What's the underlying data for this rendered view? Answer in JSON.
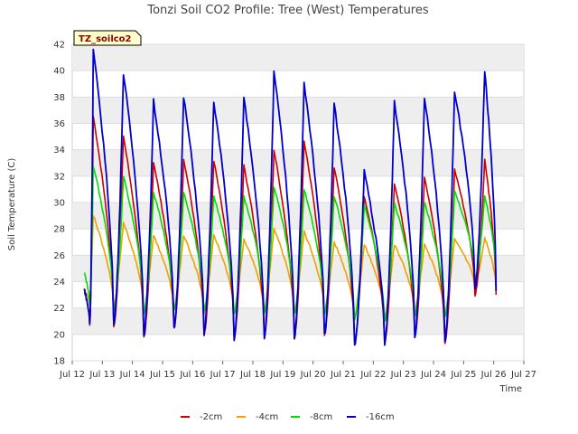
{
  "chart_data": {
    "type": "line",
    "title": "Tonzi Soil CO2 Profile: Tree (West) Temperatures",
    "xlabel": "Time",
    "ylabel": "Soil Temperature (C)",
    "tag": "TZ_soilco2",
    "ylim": [
      18,
      42
    ],
    "yticks": [
      18,
      20,
      22,
      24,
      26,
      28,
      30,
      32,
      34,
      36,
      38,
      40,
      42
    ],
    "xlim": [
      12,
      27
    ],
    "xticks": [
      {
        "v": 12,
        "label": "Jul 12"
      },
      {
        "v": 13,
        "label": "Jul 13"
      },
      {
        "v": 14,
        "label": "Jul 14"
      },
      {
        "v": 15,
        "label": "Jul 15"
      },
      {
        "v": 16,
        "label": "Jul 16"
      },
      {
        "v": 17,
        "label": "Jul 17"
      },
      {
        "v": 18,
        "label": "Jul 18"
      },
      {
        "v": 19,
        "label": "Jul 19"
      },
      {
        "v": 20,
        "label": "Jul 20"
      },
      {
        "v": 21,
        "label": "Jul 21"
      },
      {
        "v": 22,
        "label": "Jul 22"
      },
      {
        "v": 23,
        "label": "Jul 23"
      },
      {
        "v": 24,
        "label": "Jul 24"
      },
      {
        "v": 25,
        "label": "Jul 25"
      },
      {
        "v": 26,
        "label": "Jul 26"
      },
      {
        "v": 27,
        "label": "Jul 27"
      }
    ],
    "grid": true,
    "legend": "bottom",
    "series": [
      {
        "name": "-2cm",
        "color": "#cc0000",
        "daily_max": [
          36.5,
          35.0,
          33.0,
          33.3,
          33.2,
          32.8,
          34.0,
          34.7,
          32.7,
          30.5,
          31.5,
          32.0,
          32.5,
          33.2
        ],
        "daily_min": [
          20.7,
          20.6,
          19.8,
          20.5,
          20.0,
          19.7,
          19.8,
          19.7,
          20.0,
          19.4,
          19.4,
          19.9,
          19.4,
          23.0
        ],
        "x": [
          12.55,
          13.3,
          14.3,
          15.3,
          16.3,
          17.3,
          18.3,
          19.3,
          20.3,
          21.3,
          22.3,
          23.3,
          24.3,
          25.3,
          26.1
        ],
        "min_x": [
          12.55,
          13.35,
          14.35,
          15.35,
          16.3,
          17.3,
          18.35,
          19.35,
          20.3,
          21.35,
          22.3,
          23.35,
          24.3,
          25.4,
          26.1
        ]
      },
      {
        "name": "-4cm",
        "color": "#f0a000",
        "daily_max": [
          29.0,
          28.5,
          27.5,
          27.5,
          27.5,
          27.2,
          28.0,
          27.8,
          27.0,
          26.8,
          26.8,
          26.8,
          27.2,
          27.3
        ],
        "daily_min": [
          22.3,
          21.8,
          21.6,
          21.8,
          21.6,
          21.6,
          21.6,
          21.6,
          21.6,
          21.2,
          21.2,
          21.6,
          21.4,
          23.5
        ]
      },
      {
        "name": "-8cm",
        "color": "#00dd00",
        "daily_max": [
          32.8,
          32.0,
          30.8,
          30.8,
          30.5,
          30.5,
          31.2,
          31.0,
          30.5,
          29.8,
          30.0,
          30.0,
          30.8,
          30.5
        ],
        "daily_min": [
          22.2,
          21.8,
          21.6,
          21.8,
          21.8,
          21.6,
          21.6,
          21.6,
          21.6,
          21.2,
          21.0,
          21.4,
          21.3,
          24.3
        ],
        "start": 24.7
      },
      {
        "name": "-16cm",
        "color": "#0000cc",
        "daily_max": [
          41.5,
          39.8,
          37.7,
          38.0,
          37.7,
          38.0,
          39.9,
          39.0,
          37.5,
          32.4,
          37.7,
          38.0,
          38.5,
          40.0
        ],
        "daily_min": [
          20.8,
          20.7,
          20.0,
          20.4,
          20.1,
          19.6,
          19.7,
          19.8,
          20.0,
          19.1,
          19.3,
          19.9,
          19.4,
          23.3
        ],
        "start": 23.4
      }
    ]
  }
}
